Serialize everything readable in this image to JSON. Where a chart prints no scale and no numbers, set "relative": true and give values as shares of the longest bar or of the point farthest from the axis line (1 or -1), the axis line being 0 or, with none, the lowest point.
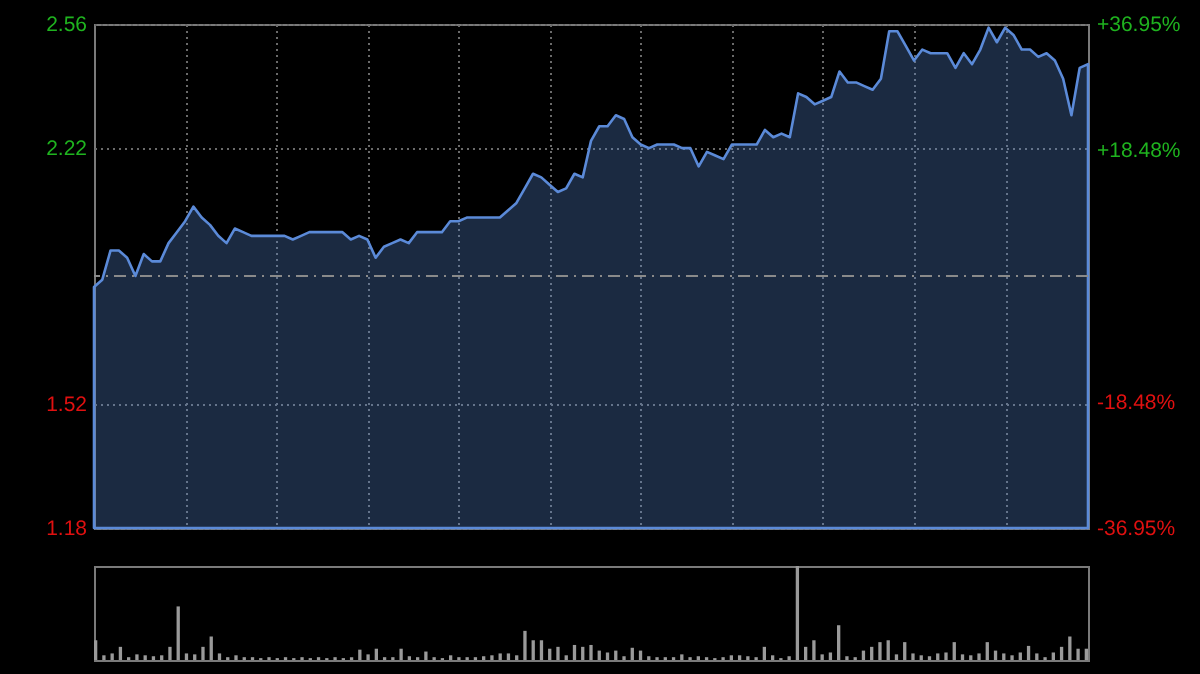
{
  "chart_data": [
    {
      "type": "area",
      "categories": [
        null,
        null,
        null,
        null,
        null,
        null,
        null,
        null,
        null,
        null,
        null,
        null,
        null,
        null,
        null,
        null,
        null,
        null,
        null,
        null,
        null,
        null,
        null,
        null,
        null,
        null,
        null,
        null,
        null,
        null,
        null,
        null,
        null,
        null,
        null,
        null,
        null,
        null,
        null,
        null,
        null,
        null,
        null,
        null,
        null,
        null,
        null,
        null,
        null,
        null,
        null,
        null,
        null,
        null,
        null,
        null,
        null,
        null,
        null,
        null,
        null,
        null,
        null,
        null,
        null,
        null,
        null,
        null,
        null,
        null,
        null,
        null,
        null,
        null,
        null,
        null,
        null,
        null,
        null,
        null,
        null,
        null,
        null,
        null,
        null,
        null,
        null,
        null,
        null,
        null,
        null,
        null,
        null,
        null,
        null,
        null,
        null,
        null,
        null,
        null,
        null,
        null,
        null,
        null,
        null,
        null,
        null,
        null,
        null,
        null,
        null,
        null,
        null,
        null,
        null,
        null,
        null,
        null,
        null,
        null,
        null
      ],
      "ylim": [
        1.18,
        2.56
      ],
      "yticks": [
        2.56,
        2.22,
        1.52,
        1.18
      ],
      "y2lim": [
        -36.95,
        36.95
      ],
      "y2ticks": [
        {
          "value": 36.95,
          "label": "+36.95%"
        },
        {
          "value": 18.48,
          "label": "+18.48%"
        },
        {
          "value": -18.48,
          "label": "-18.48%"
        },
        {
          "value": -36.95,
          "label": "-36.95%"
        }
      ],
      "grid": true,
      "ref_lines": [
        {
          "axis": "y",
          "value": 1.87,
          "color": "#8a8a8a",
          "line_style": "dashed"
        }
      ],
      "series": [
        {
          "color": "#5b8ad8",
          "values": [
            1.84,
            1.86,
            1.94,
            1.94,
            1.92,
            1.87,
            1.93,
            1.91,
            1.91,
            1.96,
            1.99,
            2.02,
            2.06,
            2.03,
            2.01,
            1.98,
            1.96,
            2.0,
            1.99,
            1.98,
            1.98,
            1.98,
            1.98,
            1.98,
            1.97,
            1.98,
            1.99,
            1.99,
            1.99,
            1.99,
            1.99,
            1.97,
            1.98,
            1.97,
            1.92,
            1.95,
            1.96,
            1.97,
            1.96,
            1.99,
            1.99,
            1.99,
            1.99,
            2.02,
            2.02,
            2.03,
            2.03,
            2.03,
            2.03,
            2.03,
            2.05,
            2.07,
            2.11,
            2.15,
            2.14,
            2.12,
            2.1,
            2.11,
            2.15,
            2.14,
            2.24,
            2.28,
            2.28,
            2.31,
            2.3,
            2.25,
            2.23,
            2.22,
            2.23,
            2.23,
            2.23,
            2.22,
            2.22,
            2.17,
            2.21,
            2.2,
            2.19,
            2.23,
            2.23,
            2.23,
            2.23,
            2.27,
            2.25,
            2.26,
            2.25,
            2.37,
            2.36,
            2.34,
            2.35,
            2.36,
            2.43,
            2.4,
            2.4,
            2.39,
            2.38,
            2.41,
            2.54,
            2.54,
            2.5,
            2.46,
            2.49,
            2.48,
            2.48,
            2.48,
            2.44,
            2.48,
            2.45,
            2.49,
            2.55,
            2.51,
            2.55,
            2.53,
            2.49,
            2.49,
            2.47,
            2.48,
            2.46,
            2.41,
            2.31,
            2.44,
            2.45
          ]
        }
      ]
    },
    {
      "type": "bar",
      "relative": true,
      "categories": [
        null,
        null,
        null,
        null,
        null,
        null,
        null,
        null,
        null,
        null,
        null,
        null,
        null,
        null,
        null,
        null,
        null,
        null,
        null,
        null,
        null,
        null,
        null,
        null,
        null,
        null,
        null,
        null,
        null,
        null,
        null,
        null,
        null,
        null,
        null,
        null,
        null,
        null,
        null,
        null,
        null,
        null,
        null,
        null,
        null,
        null,
        null,
        null,
        null,
        null,
        null,
        null,
        null,
        null,
        null,
        null,
        null,
        null,
        null,
        null,
        null,
        null,
        null,
        null,
        null,
        null,
        null,
        null,
        null,
        null,
        null,
        null,
        null,
        null,
        null,
        null,
        null,
        null,
        null,
        null,
        null,
        null,
        null,
        null,
        null,
        null,
        null,
        null,
        null,
        null,
        null,
        null,
        null,
        null,
        null,
        null,
        null,
        null,
        null,
        null,
        null,
        null,
        null,
        null,
        null,
        null,
        null,
        null,
        null,
        null,
        null,
        null,
        null,
        null,
        null,
        null,
        null,
        null,
        null,
        null,
        null
      ],
      "series": [
        {
          "color": "#9a9a9a",
          "values": [
            0.21,
            0.05,
            0.07,
            0.14,
            0.03,
            0.06,
            0.05,
            0.04,
            0.05,
            0.14,
            0.57,
            0.07,
            0.06,
            0.14,
            0.25,
            0.07,
            0.03,
            0.05,
            0.03,
            0.03,
            0.02,
            0.03,
            0.02,
            0.03,
            0.02,
            0.03,
            0.02,
            0.03,
            0.02,
            0.03,
            0.02,
            0.03,
            0.11,
            0.06,
            0.12,
            0.03,
            0.03,
            0.12,
            0.04,
            0.03,
            0.09,
            0.03,
            0.02,
            0.05,
            0.03,
            0.03,
            0.03,
            0.04,
            0.05,
            0.07,
            0.07,
            0.05,
            0.31,
            0.21,
            0.21,
            0.12,
            0.14,
            0.05,
            0.16,
            0.14,
            0.16,
            0.1,
            0.08,
            0.1,
            0.04,
            0.13,
            0.1,
            0.04,
            0.03,
            0.03,
            0.03,
            0.06,
            0.03,
            0.04,
            0.03,
            0.02,
            0.03,
            0.05,
            0.05,
            0.04,
            0.03,
            0.14,
            0.05,
            0.02,
            0.04,
            1.0,
            0.14,
            0.21,
            0.06,
            0.08,
            0.37,
            0.04,
            0.03,
            0.1,
            0.14,
            0.19,
            0.21,
            0.06,
            0.19,
            0.07,
            0.05,
            0.04,
            0.07,
            0.08,
            0.19,
            0.06,
            0.05,
            0.07,
            0.19,
            0.1,
            0.07,
            0.05,
            0.08,
            0.15,
            0.07,
            0.03,
            0.08,
            0.14,
            0.25,
            0.12,
            0.12
          ]
        }
      ]
    }
  ]
}
